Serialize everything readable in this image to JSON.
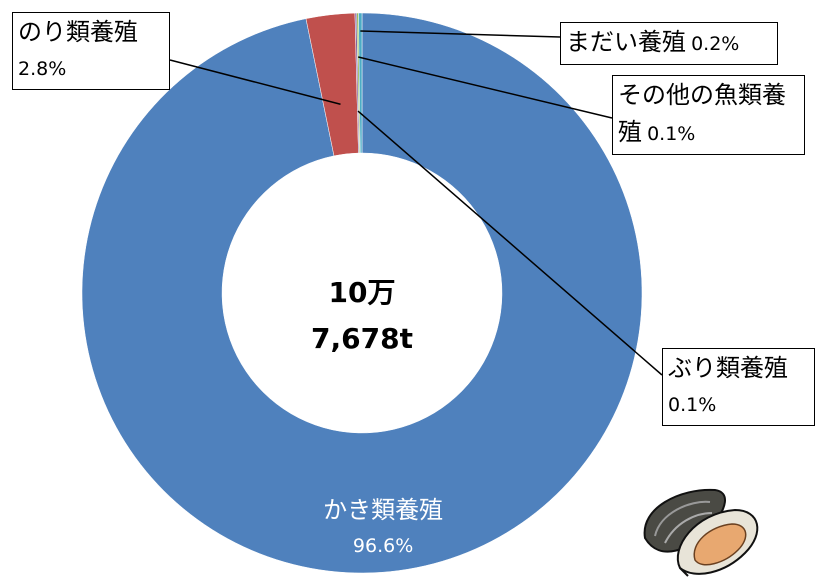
{
  "chart_data": {
    "type": "donut",
    "categories": [
      "かき類養殖",
      "のり類養殖",
      "ぶり類養殖",
      "その他の魚類養殖",
      "まだい養殖"
    ],
    "values": [
      96.6,
      2.8,
      0.1,
      0.1,
      0.2
    ],
    "value_labels": [
      "96.6%",
      "2.8%",
      "0.1%",
      "0.1%",
      "0.2%"
    ],
    "colors": [
      "#4f81bd",
      "#c0504d",
      "#8064a2",
      "#9bbb59",
      "#4bacc6"
    ],
    "center_label": [
      "10万",
      "7,678t"
    ]
  }
}
